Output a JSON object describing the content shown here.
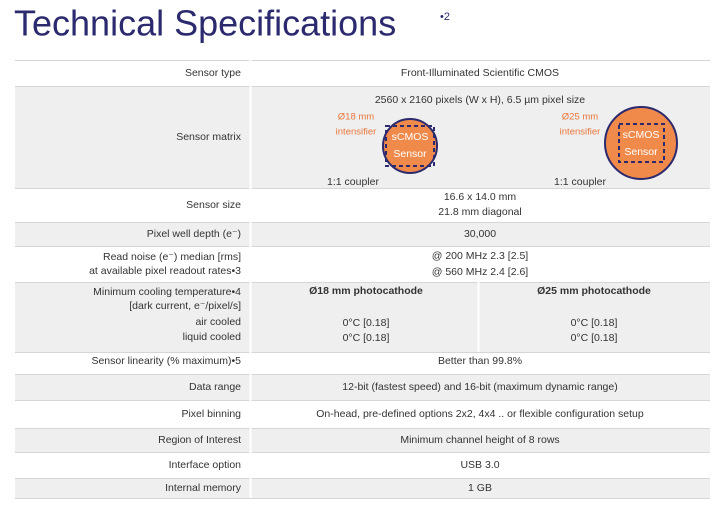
{
  "header": {
    "title": "Technical Specifications",
    "note": "•2"
  },
  "table": {
    "rows": [
      {
        "label": [
          "Sensor type"
        ],
        "value": [
          "Front-Illuminated Scientific CMOS"
        ]
      },
      {
        "label": [
          "Sensor matrix"
        ],
        "value": [
          "2560 x 2160 pixels (W x H), 6.5 µm pixel size"
        ],
        "diagrams": [
          {
            "size": "Ø18 mm",
            "kind": "intensifier",
            "sensor": [
              "sCMOS",
              "Sensor"
            ],
            "coupler": "1:1 coupler"
          },
          {
            "size": "Ø25 mm",
            "kind": "intensifier",
            "sensor": [
              "sCMOS",
              "Sensor"
            ],
            "coupler": "1:1 coupler"
          }
        ]
      },
      {
        "label": [
          "Sensor size"
        ],
        "value": [
          "16.6 x 14.0 mm",
          "21.8 mm diagonal"
        ]
      },
      {
        "label": [
          "Pixel well depth (e⁻)"
        ],
        "value": [
          "30,000"
        ]
      },
      {
        "label": [
          "Read noise (e⁻) median [rms]",
          "at available pixel readout rates•3"
        ],
        "value": [
          "@ 200 MHz 2.3 [2.5]",
          "@ 560 MHz 2.4 [2.6]"
        ]
      },
      {
        "label": [
          "Minimum cooling temperature•4",
          "[dark current, e⁻/pixel/s]",
          "air cooled",
          "liquid cooled"
        ],
        "columns": [
          {
            "header": "Ø18 mm photocathode",
            "values": [
              "0°C [0.18]",
              "0°C [0.18]"
            ]
          },
          {
            "header": "Ø25 mm photocathode",
            "values": [
              "0°C [0.18]",
              "0°C [0.18]"
            ]
          }
        ]
      },
      {
        "label": [
          "Sensor linearity (% maximum)•5"
        ],
        "value": [
          "Better than 99.8%"
        ]
      },
      {
        "label": [
          "Data range"
        ],
        "value": [
          "12-bit (fastest speed) and 16-bit (maximum dynamic range)"
        ]
      },
      {
        "label": [
          "Pixel binning"
        ],
        "value": [
          "On-head, pre-defined options 2x2, 4x4 .. or flexible configuration setup"
        ]
      },
      {
        "label": [
          "Region of Interest"
        ],
        "value": [
          "Minimum channel height of 8 rows"
        ]
      },
      {
        "label": [
          "Interface option"
        ],
        "value": [
          "USB 3.0"
        ]
      },
      {
        "label": [
          "Internal memory"
        ],
        "value": [
          "1 GB"
        ]
      }
    ]
  }
}
